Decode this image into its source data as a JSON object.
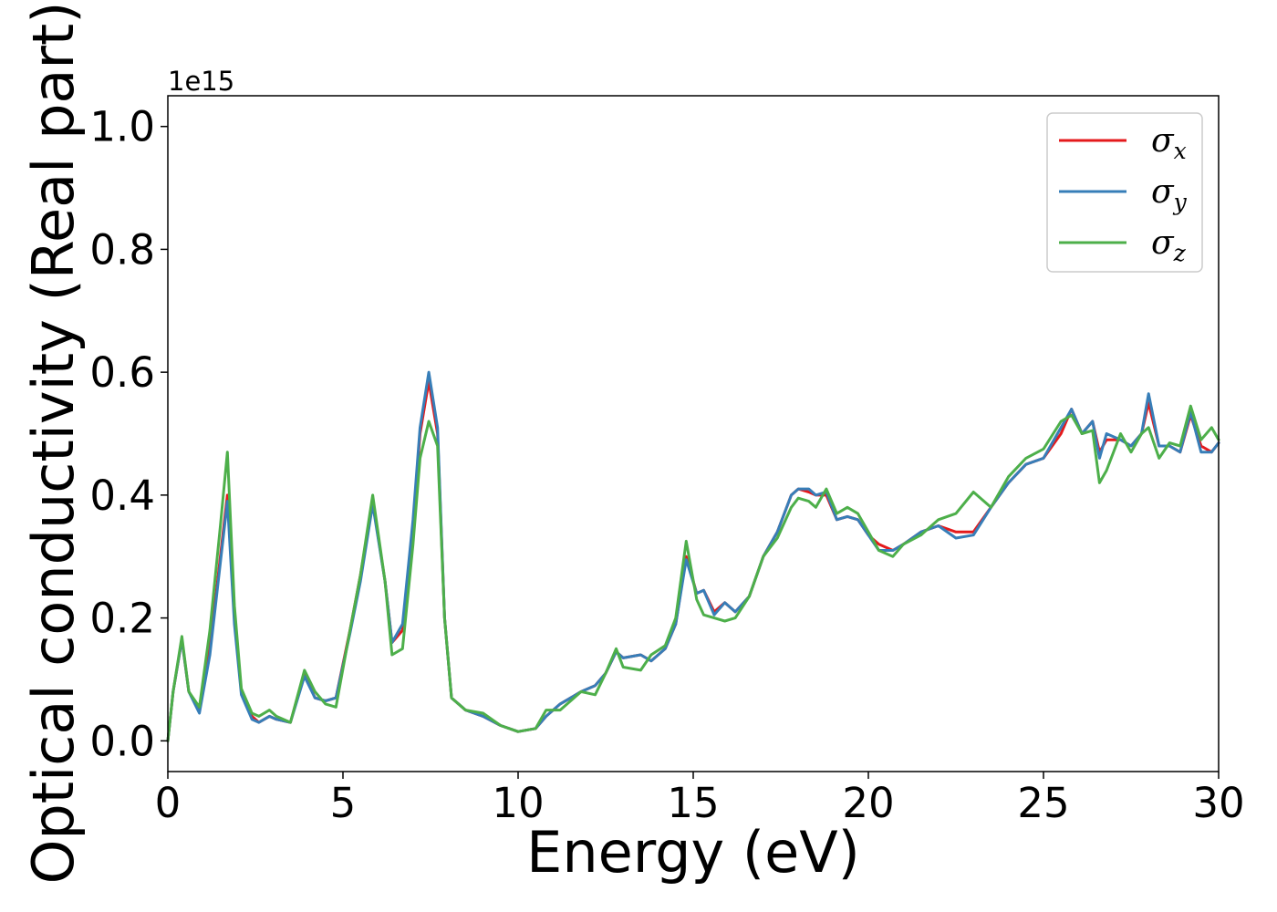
{
  "chart_data": {
    "type": "line",
    "title": "",
    "xlabel": "Energy (eV)",
    "ylabel": "Optical conductivity (Real part)",
    "y_offset_text": "1e15",
    "xlim": [
      0,
      30
    ],
    "ylim": [
      -0.05,
      1.05
    ],
    "x_ticks": [
      0,
      5,
      10,
      15,
      20,
      25,
      30
    ],
    "x_tick_labels": [
      "0",
      "5",
      "10",
      "15",
      "20",
      "25",
      "30"
    ],
    "y_ticks": [
      0.0,
      0.2,
      0.4,
      0.6,
      0.8,
      1.0
    ],
    "y_tick_labels": [
      "0.0",
      "0.2",
      "0.4",
      "0.6",
      "0.8",
      "1.0"
    ],
    "grid": false,
    "legend_position": "top-right",
    "colors": {
      "sigma_x": "#e41a1c",
      "sigma_y": "#377eb8",
      "sigma_z": "#4daf4a"
    },
    "series": [
      {
        "name": "σx",
        "symbol": "σ",
        "subscript": "x",
        "color": "#e41a1c",
        "x": [
          0,
          0.15,
          0.4,
          0.6,
          0.9,
          1.2,
          1.5,
          1.7,
          1.9,
          2.1,
          2.4,
          2.6,
          2.9,
          3.1,
          3.5,
          3.9,
          4.2,
          4.5,
          4.8,
          5.2,
          5.5,
          5.85,
          6.2,
          6.4,
          6.7,
          7.0,
          7.2,
          7.45,
          7.7,
          7.9,
          8.1,
          8.5,
          9.0,
          9.5,
          10.0,
          10.5,
          10.8,
          11.2,
          11.5,
          11.8,
          12.2,
          12.5,
          12.8,
          13.0,
          13.5,
          13.8,
          14.2,
          14.5,
          14.8,
          15.1,
          15.3,
          15.6,
          15.9,
          16.2,
          16.6,
          17.0,
          17.4,
          17.8,
          18.0,
          18.3,
          18.5,
          18.8,
          19.1,
          19.4,
          19.7,
          20.0,
          20.3,
          20.7,
          21.0,
          21.5,
          22.0,
          22.5,
          23.0,
          23.5,
          24.0,
          24.5,
          25.0,
          25.5,
          25.8,
          26.1,
          26.4,
          26.6,
          26.8,
          27.2,
          27.5,
          27.8,
          28.0,
          28.3,
          28.6,
          28.9,
          29.2,
          29.5,
          29.8,
          30.0
        ],
        "y": [
          0.0,
          0.08,
          0.165,
          0.08,
          0.05,
          0.15,
          0.3,
          0.4,
          0.2,
          0.08,
          0.04,
          0.03,
          0.04,
          0.035,
          0.03,
          0.11,
          0.07,
          0.065,
          0.07,
          0.18,
          0.27,
          0.39,
          0.26,
          0.16,
          0.18,
          0.35,
          0.5,
          0.585,
          0.5,
          0.2,
          0.07,
          0.05,
          0.04,
          0.025,
          0.015,
          0.02,
          0.04,
          0.06,
          0.07,
          0.08,
          0.09,
          0.11,
          0.145,
          0.135,
          0.14,
          0.13,
          0.15,
          0.19,
          0.3,
          0.24,
          0.245,
          0.21,
          0.225,
          0.21,
          0.235,
          0.3,
          0.34,
          0.4,
          0.41,
          0.405,
          0.4,
          0.4,
          0.36,
          0.365,
          0.36,
          0.335,
          0.32,
          0.31,
          0.32,
          0.34,
          0.35,
          0.34,
          0.34,
          0.38,
          0.42,
          0.45,
          0.46,
          0.5,
          0.54,
          0.5,
          0.52,
          0.47,
          0.49,
          0.49,
          0.48,
          0.5,
          0.55,
          0.48,
          0.48,
          0.47,
          0.53,
          0.48,
          0.47,
          0.485
        ]
      },
      {
        "name": "σy",
        "symbol": "σ",
        "subscript": "y",
        "color": "#377eb8",
        "x": [
          0,
          0.15,
          0.4,
          0.6,
          0.9,
          1.2,
          1.5,
          1.7,
          1.9,
          2.1,
          2.4,
          2.6,
          2.9,
          3.1,
          3.5,
          3.9,
          4.2,
          4.5,
          4.8,
          5.2,
          5.5,
          5.85,
          6.2,
          6.4,
          6.7,
          7.0,
          7.2,
          7.45,
          7.7,
          7.9,
          8.1,
          8.5,
          9.0,
          9.5,
          10.0,
          10.5,
          10.8,
          11.2,
          11.5,
          11.8,
          12.2,
          12.5,
          12.8,
          13.0,
          13.5,
          13.8,
          14.2,
          14.5,
          14.8,
          15.1,
          15.3,
          15.6,
          15.9,
          16.2,
          16.6,
          17.0,
          17.4,
          17.8,
          18.0,
          18.3,
          18.5,
          18.8,
          19.1,
          19.4,
          19.7,
          20.0,
          20.3,
          20.7,
          21.0,
          21.5,
          22.0,
          22.5,
          23.0,
          23.5,
          24.0,
          24.5,
          25.0,
          25.5,
          25.8,
          26.1,
          26.4,
          26.6,
          26.8,
          27.2,
          27.5,
          27.8,
          28.0,
          28.3,
          28.6,
          28.9,
          29.2,
          29.5,
          29.8,
          30.0
        ],
        "y": [
          0.0,
          0.08,
          0.165,
          0.08,
          0.045,
          0.14,
          0.29,
          0.39,
          0.19,
          0.075,
          0.035,
          0.03,
          0.04,
          0.035,
          0.03,
          0.105,
          0.07,
          0.065,
          0.07,
          0.175,
          0.26,
          0.385,
          0.26,
          0.16,
          0.19,
          0.36,
          0.51,
          0.6,
          0.51,
          0.2,
          0.07,
          0.05,
          0.04,
          0.025,
          0.015,
          0.02,
          0.04,
          0.06,
          0.07,
          0.08,
          0.09,
          0.11,
          0.145,
          0.135,
          0.14,
          0.13,
          0.15,
          0.19,
          0.295,
          0.24,
          0.245,
          0.205,
          0.225,
          0.21,
          0.235,
          0.3,
          0.34,
          0.4,
          0.41,
          0.41,
          0.4,
          0.405,
          0.36,
          0.365,
          0.36,
          0.335,
          0.31,
          0.31,
          0.32,
          0.34,
          0.35,
          0.33,
          0.335,
          0.38,
          0.42,
          0.45,
          0.46,
          0.51,
          0.54,
          0.5,
          0.52,
          0.46,
          0.5,
          0.49,
          0.48,
          0.5,
          0.565,
          0.48,
          0.48,
          0.47,
          0.535,
          0.47,
          0.47,
          0.485
        ]
      },
      {
        "name": "σz",
        "symbol": "σ",
        "subscript": "z",
        "color": "#4daf4a",
        "x": [
          0,
          0.15,
          0.4,
          0.6,
          0.9,
          1.2,
          1.5,
          1.7,
          1.9,
          2.1,
          2.4,
          2.6,
          2.9,
          3.1,
          3.5,
          3.9,
          4.2,
          4.5,
          4.8,
          5.2,
          5.5,
          5.85,
          6.2,
          6.4,
          6.7,
          7.0,
          7.2,
          7.45,
          7.7,
          7.9,
          8.1,
          8.5,
          9.0,
          9.5,
          10.0,
          10.5,
          10.8,
          11.2,
          11.5,
          11.8,
          12.2,
          12.5,
          12.8,
          13.0,
          13.5,
          13.8,
          14.2,
          14.5,
          14.8,
          15.1,
          15.3,
          15.6,
          15.9,
          16.2,
          16.6,
          17.0,
          17.4,
          17.8,
          18.0,
          18.3,
          18.5,
          18.8,
          19.1,
          19.4,
          19.7,
          20.0,
          20.3,
          20.7,
          21.0,
          21.5,
          22.0,
          22.5,
          23.0,
          23.5,
          24.0,
          24.5,
          25.0,
          25.5,
          25.8,
          26.1,
          26.4,
          26.6,
          26.8,
          27.2,
          27.5,
          27.8,
          28.0,
          28.3,
          28.6,
          28.9,
          29.2,
          29.5,
          29.8,
          30.0
        ],
        "y": [
          0.0,
          0.08,
          0.17,
          0.08,
          0.055,
          0.18,
          0.35,
          0.47,
          0.22,
          0.085,
          0.045,
          0.04,
          0.05,
          0.04,
          0.03,
          0.115,
          0.08,
          0.06,
          0.055,
          0.18,
          0.27,
          0.4,
          0.26,
          0.14,
          0.15,
          0.32,
          0.46,
          0.52,
          0.48,
          0.2,
          0.07,
          0.05,
          0.045,
          0.025,
          0.015,
          0.02,
          0.05,
          0.05,
          0.065,
          0.08,
          0.075,
          0.11,
          0.15,
          0.12,
          0.115,
          0.14,
          0.155,
          0.2,
          0.325,
          0.23,
          0.205,
          0.2,
          0.195,
          0.2,
          0.235,
          0.3,
          0.33,
          0.38,
          0.395,
          0.39,
          0.38,
          0.41,
          0.37,
          0.38,
          0.37,
          0.34,
          0.31,
          0.3,
          0.32,
          0.335,
          0.36,
          0.37,
          0.405,
          0.38,
          0.43,
          0.46,
          0.475,
          0.52,
          0.53,
          0.5,
          0.505,
          0.42,
          0.44,
          0.5,
          0.47,
          0.5,
          0.51,
          0.46,
          0.485,
          0.48,
          0.545,
          0.49,
          0.51,
          0.49
        ]
      }
    ]
  }
}
